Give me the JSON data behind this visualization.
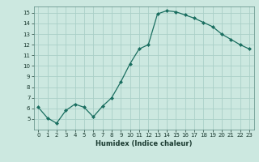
{
  "x": [
    0,
    1,
    2,
    3,
    4,
    5,
    6,
    7,
    8,
    9,
    10,
    11,
    12,
    13,
    14,
    15,
    16,
    17,
    18,
    19,
    20,
    21,
    22,
    23
  ],
  "y": [
    6.1,
    5.1,
    4.6,
    5.8,
    6.4,
    6.1,
    5.2,
    6.2,
    7.0,
    8.5,
    10.2,
    11.6,
    12.0,
    14.9,
    15.2,
    15.1,
    14.8,
    14.5,
    14.1,
    13.7,
    13.0,
    12.5,
    12.0,
    11.6
  ],
  "title": "",
  "xlabel": "Humidex (Indice chaleur)",
  "ylabel": "",
  "bg_color": "#cce8e0",
  "grid_color": "#aad0c8",
  "line_color": "#1a6e60",
  "marker_color": "#1a6e60",
  "xlim": [
    -0.5,
    23.5
  ],
  "ylim": [
    4.0,
    15.6
  ],
  "yticks": [
    5,
    6,
    7,
    8,
    9,
    10,
    11,
    12,
    13,
    14,
    15
  ],
  "xticks": [
    0,
    1,
    2,
    3,
    4,
    5,
    6,
    7,
    8,
    9,
    10,
    11,
    12,
    13,
    14,
    15,
    16,
    17,
    18,
    19,
    20,
    21,
    22,
    23
  ]
}
